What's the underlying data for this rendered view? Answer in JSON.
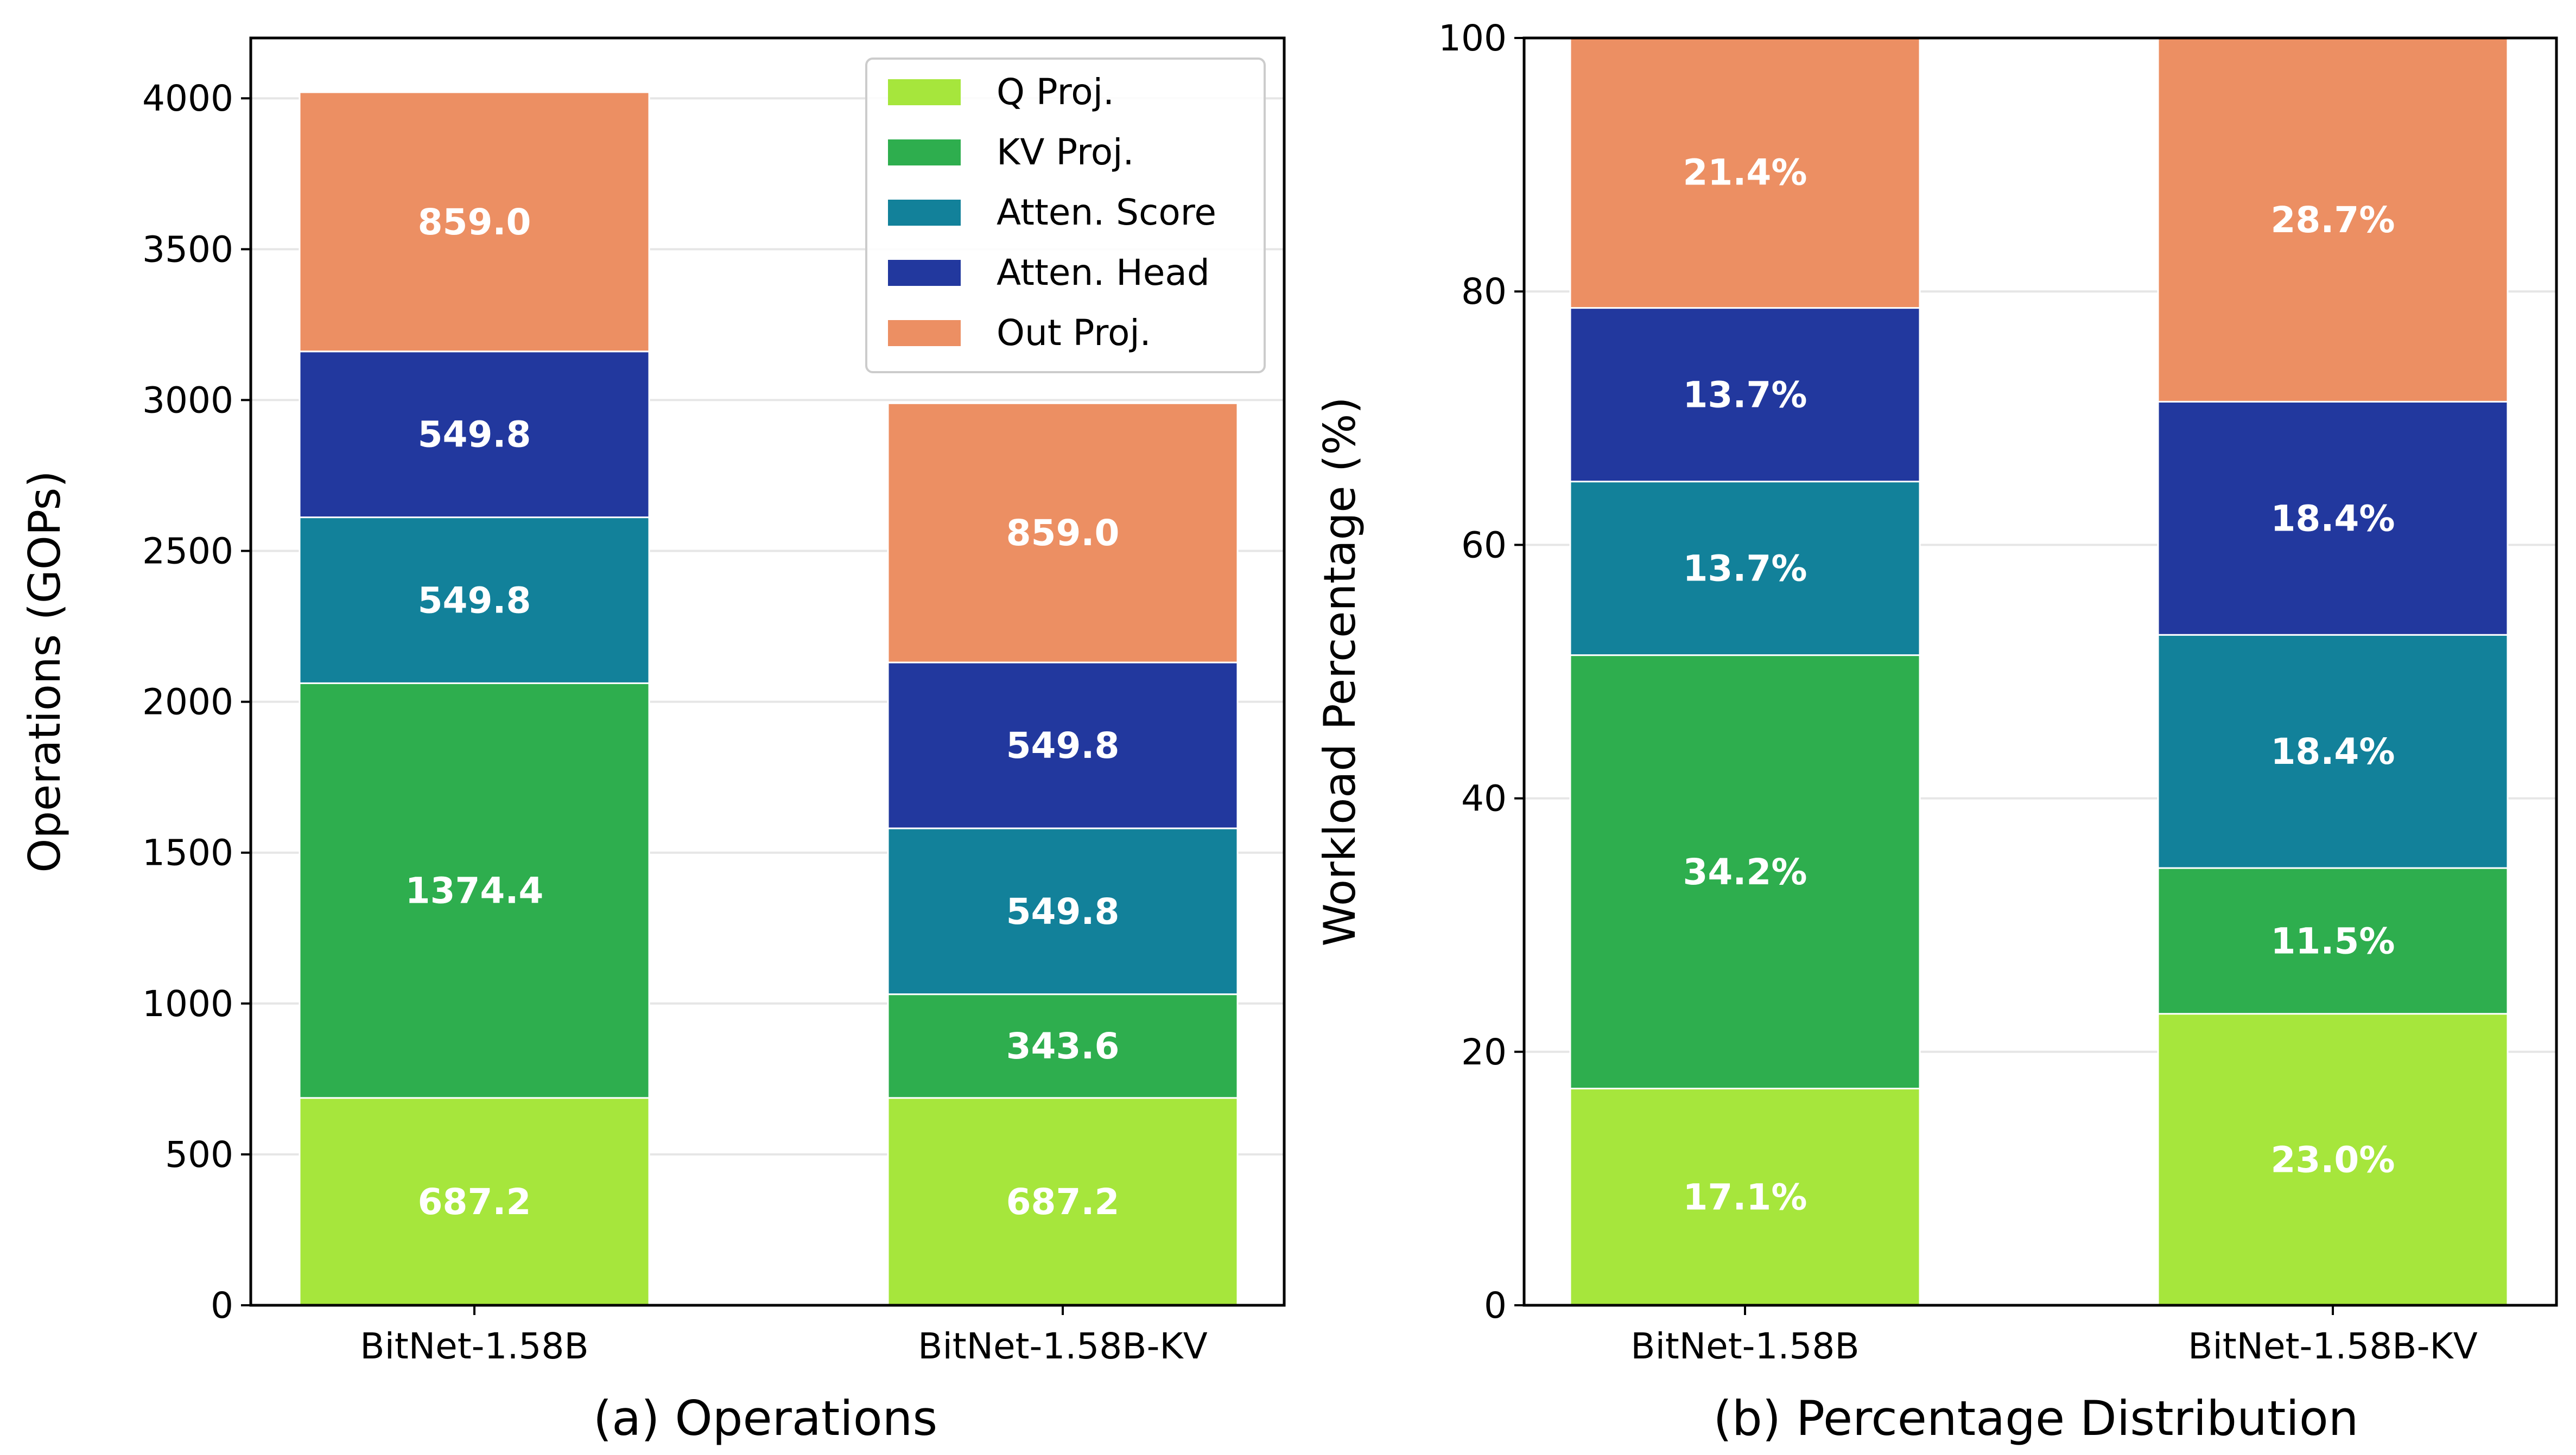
{
  "colors": {
    "q_proj": "#a6e63c",
    "kv_proj": "#2eae4e",
    "atten_score": "#12819a",
    "atten_head": "#22389e",
    "out_proj": "#ec8f63",
    "grid": "#e6e6e6"
  },
  "chart_data": [
    {
      "type": "bar",
      "stacked": true,
      "title": "(a) Operations",
      "xlabel": "(a) Operations",
      "ylabel": "Operations (GOPs)",
      "categories": [
        "BitNet-1.58B",
        "BitNet-1.58B-KV"
      ],
      "ylim": [
        0,
        4200
      ],
      "yticks": [
        0,
        500,
        1000,
        1500,
        2000,
        2500,
        3000,
        3500,
        4000
      ],
      "grid": true,
      "legend_position": "top-right",
      "series": [
        {
          "name": "Q Proj.",
          "color_key": "q_proj",
          "values": [
            687.2,
            687.2
          ],
          "labels": [
            "687.2",
            "687.2"
          ]
        },
        {
          "name": "KV Proj.",
          "color_key": "kv_proj",
          "values": [
            1374.4,
            343.6
          ],
          "labels": [
            "1374.4",
            "343.6"
          ]
        },
        {
          "name": "Atten. Score",
          "color_key": "atten_score",
          "values": [
            549.8,
            549.8
          ],
          "labels": [
            "549.8",
            "549.8"
          ]
        },
        {
          "name": "Atten. Head",
          "color_key": "atten_head",
          "values": [
            549.8,
            549.8
          ],
          "labels": [
            "549.8",
            "549.8"
          ]
        },
        {
          "name": "Out Proj.",
          "color_key": "out_proj",
          "values": [
            859.0,
            859.0
          ],
          "labels": [
            "859.0",
            "859.0"
          ]
        }
      ]
    },
    {
      "type": "bar",
      "stacked": true,
      "title": "(b) Percentage Distribution",
      "xlabel": "(b) Percentage Distribution",
      "ylabel": "Workload Percentage (%)",
      "categories": [
        "BitNet-1.58B",
        "BitNet-1.58B-KV"
      ],
      "ylim": [
        0,
        100
      ],
      "yticks": [
        0,
        20,
        40,
        60,
        80,
        100
      ],
      "grid": true,
      "series": [
        {
          "name": "Q Proj.",
          "color_key": "q_proj",
          "values": [
            17.1,
            23.0
          ],
          "labels": [
            "17.1%",
            "23.0%"
          ]
        },
        {
          "name": "KV Proj.",
          "color_key": "kv_proj",
          "values": [
            34.2,
            11.5
          ],
          "labels": [
            "34.2%",
            "11.5%"
          ]
        },
        {
          "name": "Atten. Score",
          "color_key": "atten_score",
          "values": [
            13.7,
            18.4
          ],
          "labels": [
            "13.7%",
            "18.4%"
          ]
        },
        {
          "name": "Atten. Head",
          "color_key": "atten_head",
          "values": [
            13.7,
            18.4
          ],
          "labels": [
            "13.7%",
            "18.4%"
          ]
        },
        {
          "name": "Out Proj.",
          "color_key": "out_proj",
          "values": [
            21.4,
            28.7
          ],
          "labels": [
            "21.4%",
            "28.7%"
          ]
        }
      ]
    }
  ]
}
